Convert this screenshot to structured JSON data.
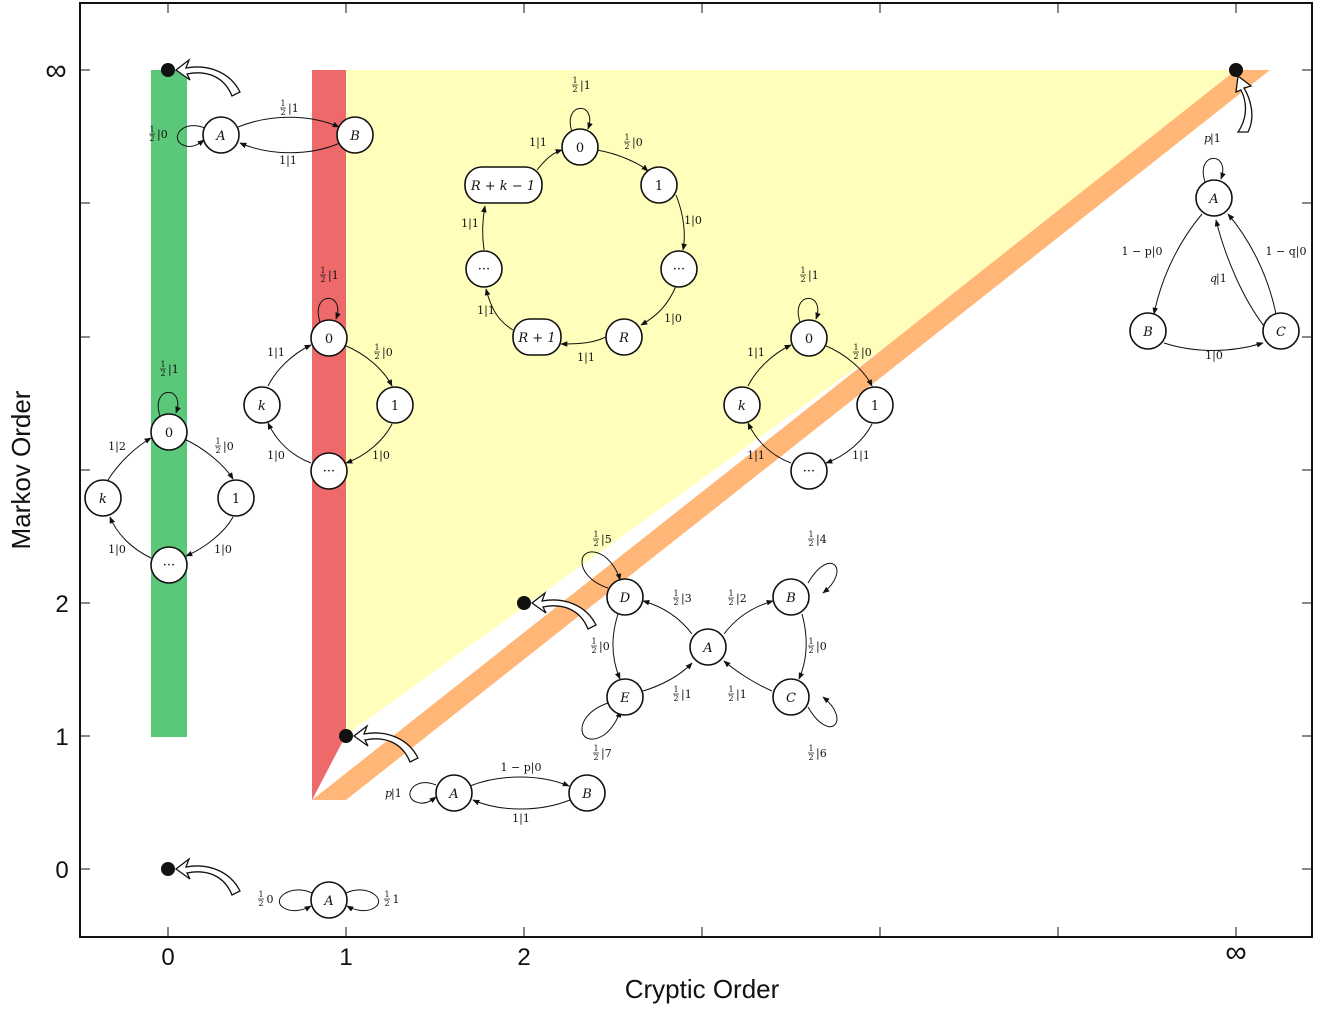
{
  "axes": {
    "xlabel": "Cryptic Order",
    "ylabel": "Markov Order",
    "xticks": [
      "0",
      "1",
      "2",
      "∞"
    ],
    "yticks": [
      "0",
      "1",
      "2",
      "∞"
    ]
  },
  "colors": {
    "green_band": "#5ac878",
    "red_band": "#ee6a6a",
    "yellow_region": "#ffffbb",
    "orange_band": "#ffb677"
  },
  "machines": {
    "iid": {
      "node": "A",
      "self_left": "0",
      "self_right": "1"
    },
    "golden_mean": {
      "nodes": [
        "A",
        "B"
      ],
      "self_a_prefix": "p",
      "self_a_suffix": "|1",
      "ab": "1 − p|0",
      "ba": "1|1"
    },
    "period2": {
      "nodes": [
        "A",
        "B"
      ],
      "self_a": "|0",
      "ab": "|1",
      "ba": "1|1"
    },
    "green_ring": {
      "nodes": [
        "0",
        "1",
        "···",
        "k"
      ],
      "self0": "|1",
      "e01": "|0",
      "e1d": "1|0",
      "edk": "1|0",
      "ek0": "1|2"
    },
    "red_ring": {
      "nodes": [
        "0",
        "1",
        "···",
        "k"
      ],
      "self0": "|1",
      "e01": "|0",
      "e1d": "1|0",
      "edk": "1|0",
      "ek0": "1|1"
    },
    "big_ring": {
      "nodes": [
        "0",
        "1",
        "···",
        "R",
        "R + 1",
        "···",
        "R + k − 1"
      ],
      "self0": "|1",
      "e01": "|0",
      "e1d": "1|0",
      "edr": "1|0",
      "er_r1": "1|1",
      "er1_d": "1|1",
      "ed_last": "1|1",
      "elast0": "1|1"
    },
    "orange_ring": {
      "nodes": [
        "0",
        "1",
        "···",
        "k"
      ],
      "self0": "|1",
      "e01": "|0",
      "e1d": "1|1",
      "edk": "1|1",
      "ek0": "1|1"
    },
    "bowtie": {
      "nodes": [
        "A",
        "B",
        "C",
        "D",
        "E"
      ],
      "ad": "|3",
      "ab": "|2",
      "bc": "|0",
      "de": "|0",
      "ca": "|1",
      "ea": "|1",
      "bself": "|4",
      "cself": "|6",
      "dself": "|5",
      "eself": "|7"
    },
    "triangle": {
      "nodes": [
        "A",
        "B",
        "C"
      ],
      "selfa_prefix": "p",
      "selfa_suffix": "|1",
      "ab": "1 − p|0",
      "ca": "1 − q|0",
      "cq_prefix": "q",
      "cq_suffix": "|1",
      "bc": "1|0"
    }
  }
}
